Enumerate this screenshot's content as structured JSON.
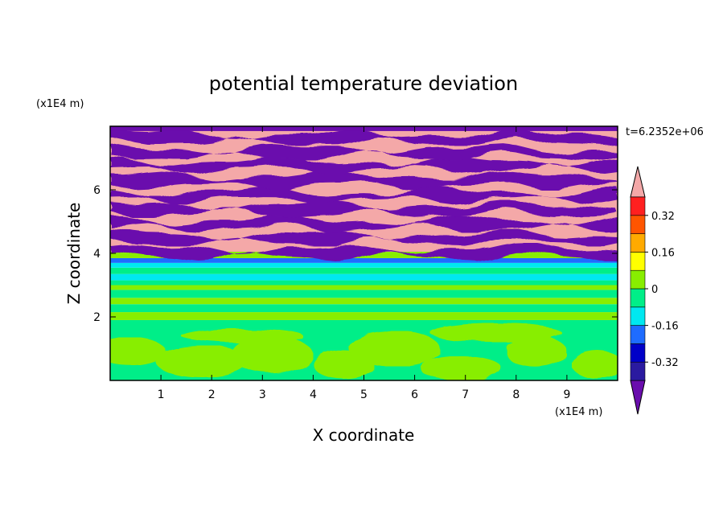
{
  "chart_data": {
    "type": "heatmap",
    "title": "potential temperature deviation",
    "xlabel": "X coordinate",
    "ylabel": "Z coordinate",
    "x_unit": "(x1E4 m)",
    "y_unit": "(x1E4 m)",
    "time_label": "t=6.2352e+06",
    "xlim": [
      0,
      10
    ],
    "ylim": [
      0,
      8
    ],
    "x_ticks": [
      1,
      2,
      3,
      4,
      5,
      6,
      7,
      8,
      9
    ],
    "y_ticks": [
      2,
      4,
      6
    ],
    "colorbar": {
      "levels": [
        -0.4,
        -0.32,
        -0.24,
        -0.16,
        -0.08,
        0,
        0.08,
        0.16,
        0.24,
        0.32,
        0.4
      ],
      "tick_labels": [
        "0.32",
        "0.16",
        "0",
        "-0.16",
        "-0.32"
      ],
      "tick_values": [
        0.32,
        0.16,
        0,
        -0.16,
        -0.32
      ],
      "colors": [
        "#6a0dad",
        "#2a1aa0",
        "#0000c8",
        "#1e6cff",
        "#00e8f0",
        "#00ee88",
        "#88ee00",
        "#ffff00",
        "#ffaa00",
        "#ff5500",
        "#ff2020",
        "#f4a8a8"
      ]
    },
    "field_description_bands": [
      {
        "z_range": [
          0,
          1.9
        ],
        "dominant": "green/lime mix"
      },
      {
        "z_range": [
          1.9,
          3.8
        ],
        "dominant": "green/cyan horizontal layers"
      },
      {
        "z_range": [
          3.8,
          8
        ],
        "dominant": "pink/purple alternating layers"
      }
    ]
  }
}
